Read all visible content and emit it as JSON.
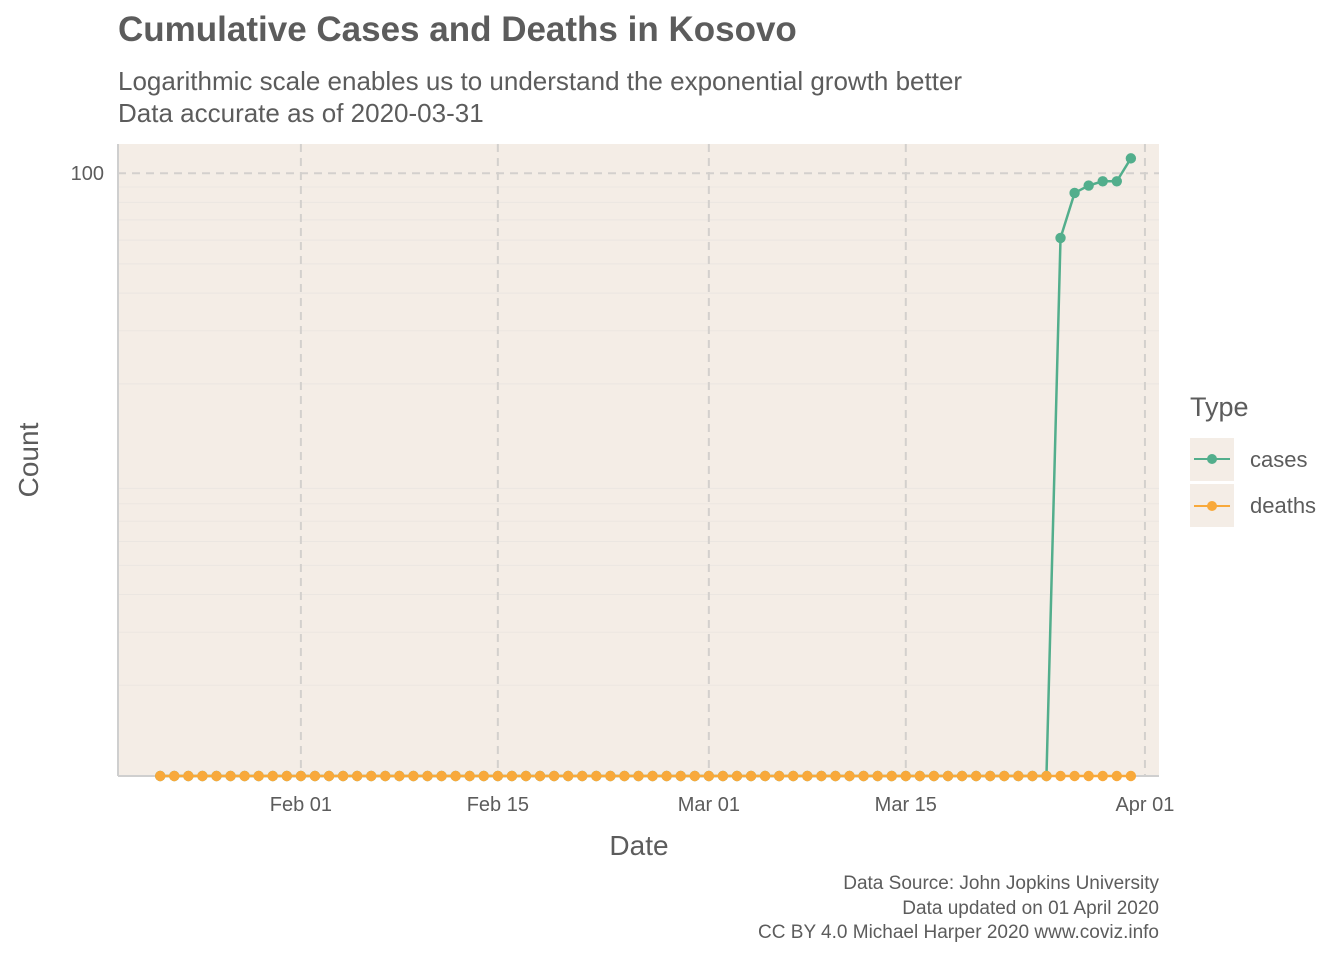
{
  "title": "Cumulative Cases and Deaths in Kosovo",
  "subtitle_line1": "Logarithmic scale enables us to understand the exponential growth better",
  "subtitle_line2": "Data accurate as of 2020-03-31",
  "caption": {
    "line1": "Data Source: John Jopkins University",
    "line2": "Data updated on 01 April 2020",
    "line3": "CC BY 4.0 Michael Harper 2020 www.coviz.info"
  },
  "legend": {
    "title": "Type",
    "items": [
      {
        "label": "cases",
        "color": "#52ae8c"
      },
      {
        "label": "deaths",
        "color": "#f8a93b"
      }
    ]
  },
  "colors": {
    "panel_background": "#f4ede6",
    "grid_major": "#d3d0cd",
    "grid_minor": "#ebe6e1",
    "axis_line": "#cfcfcf"
  },
  "chart_data": {
    "type": "line",
    "title": "Cumulative Cases and Deaths in Kosovo",
    "xlabel": "Date",
    "ylabel": "Count",
    "x_scale": "date",
    "y_scale": "log10",
    "x_range": [
      "2020-01-19",
      "2020-04-02"
    ],
    "ylim": [
      1,
      125
    ],
    "x_ticks": [
      "2020-02-01",
      "2020-02-15",
      "2020-03-01",
      "2020-03-15",
      "2020-04-01"
    ],
    "x_tick_labels": [
      "Feb 01",
      "Feb 15",
      "Mar 01",
      "Mar 15",
      "Apr 01"
    ],
    "y_ticks": [
      100
    ],
    "y_tick_labels": [
      "100"
    ],
    "grid": true,
    "legend_position": "right",
    "x_start": "2020-01-22",
    "x_end": "2020-03-31",
    "series": [
      {
        "name": "cases",
        "color": "#52ae8c",
        "values": [
          0,
          0,
          0,
          0,
          0,
          0,
          0,
          0,
          0,
          0,
          0,
          0,
          0,
          0,
          0,
          0,
          0,
          0,
          0,
          0,
          0,
          0,
          0,
          0,
          0,
          0,
          0,
          0,
          0,
          0,
          0,
          0,
          0,
          0,
          0,
          0,
          0,
          0,
          0,
          0,
          0,
          0,
          0,
          0,
          0,
          0,
          0,
          0,
          0,
          0,
          0,
          0,
          0,
          0,
          0,
          0,
          0,
          0,
          0,
          0,
          0,
          0,
          0,
          0,
          61,
          86,
          91,
          94,
          94,
          112
        ]
      },
      {
        "name": "deaths",
        "color": "#f8a93b",
        "values": [
          0,
          0,
          0,
          0,
          0,
          0,
          0,
          0,
          0,
          0,
          0,
          0,
          0,
          0,
          0,
          0,
          0,
          0,
          0,
          0,
          0,
          0,
          0,
          0,
          0,
          0,
          0,
          0,
          0,
          0,
          0,
          0,
          0,
          0,
          0,
          0,
          0,
          0,
          0,
          0,
          0,
          0,
          0,
          0,
          0,
          0,
          0,
          0,
          0,
          0,
          0,
          0,
          0,
          0,
          0,
          0,
          0,
          0,
          0,
          0,
          0,
          0,
          0,
          0,
          1,
          1,
          1,
          1,
          1,
          1
        ]
      }
    ]
  }
}
